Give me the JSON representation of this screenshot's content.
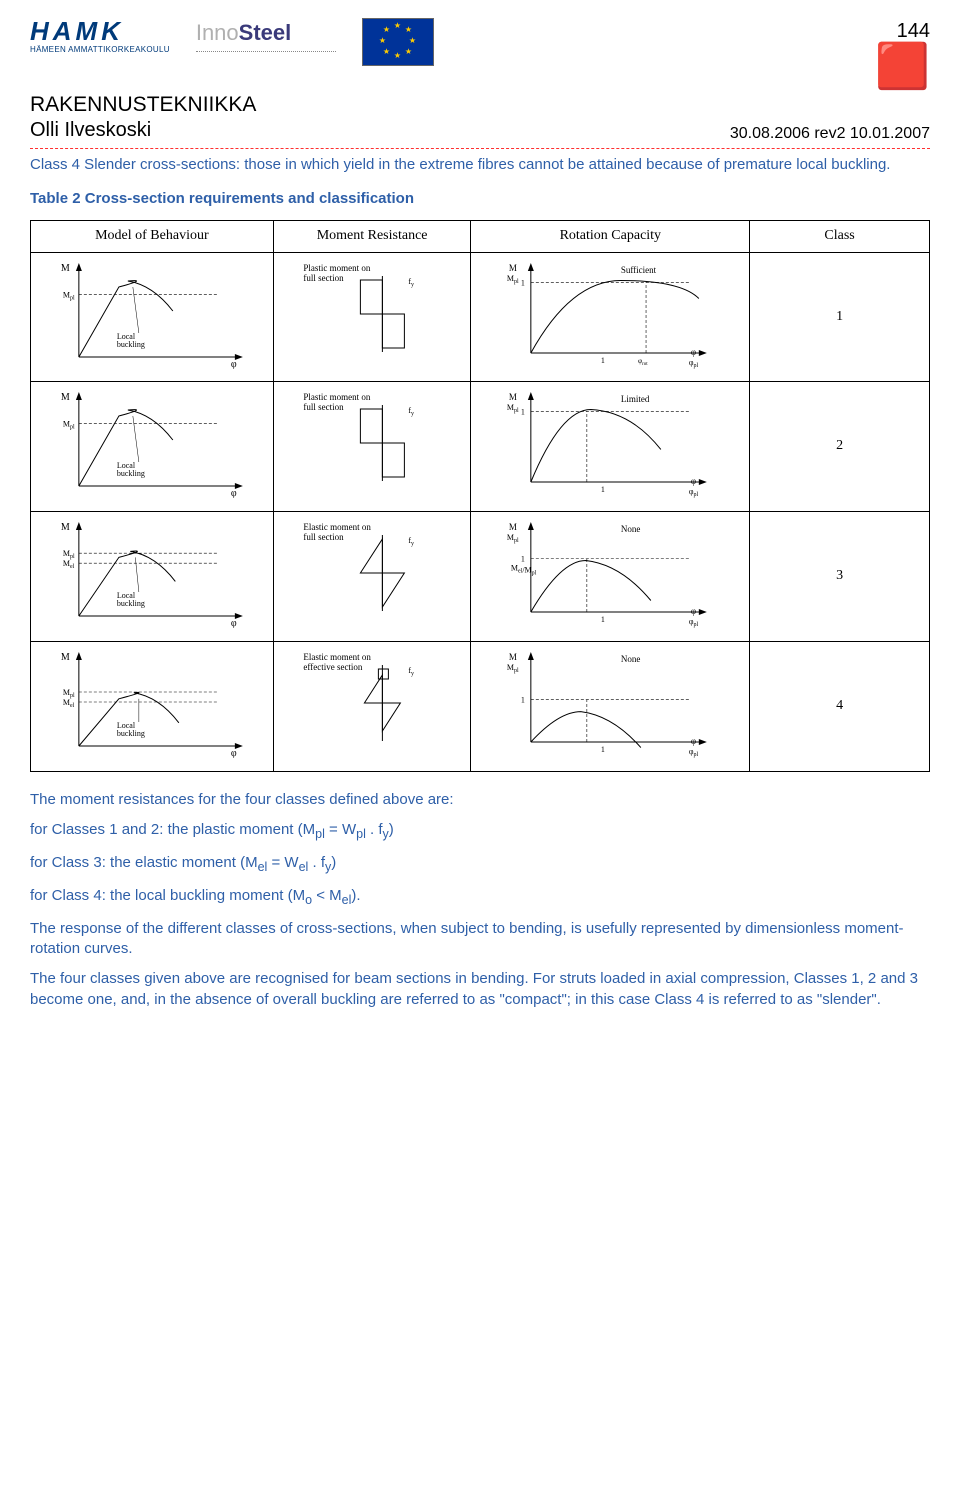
{
  "page_number": "144",
  "logos": {
    "hamk_word": "HAMK",
    "hamk_sub": "HÄMEEN AMMATTIKORKEAKOULU",
    "innosteel_a": "Inno",
    "innosteel_b": "Steel"
  },
  "doc": {
    "section_title": "RAKENNUSTEKNIIKKA",
    "author": "Olli Ilveskoski",
    "date": "30.08.2006  rev2 10.01.2007"
  },
  "intro": "Class 4 Slender cross-sections: those in which yield in the extreme fibres cannot be attained because of premature local buckling.",
  "table_title": "Table 2 Cross-section requirements and classification",
  "headers": {
    "h1": "Model of Behaviour",
    "h2": "Moment Resistance",
    "h3": "Rotation Capacity",
    "h4": "Class"
  },
  "rows": [
    {
      "behaviour": {
        "ylabel": "M",
        "yref": "M_pl",
        "note": "Local buckling",
        "cap_ratio": 1.0,
        "dash_y": 0.78
      },
      "resistance": {
        "label": "Plastic moment on full section",
        "type": "plastic"
      },
      "rotation": {
        "label": "Sufficient",
        "type": "sufficient",
        "peak": 0.98,
        "dash_x": 0.72
      },
      "class": "1"
    },
    {
      "behaviour": {
        "ylabel": "M",
        "yref": "M_pl",
        "note": "Local buckling",
        "cap_ratio": 1.0,
        "dash_y": 0.78
      },
      "resistance": {
        "label": "Plastic moment on full section",
        "type": "plastic"
      },
      "rotation": {
        "label": "Limited",
        "type": "limited",
        "peak": 0.98,
        "dash_x": 0.35
      },
      "class": "2"
    },
    {
      "behaviour": {
        "ylabel": "M",
        "yref": "M_pl",
        "yref2": "M_el",
        "note": "Local buckling",
        "cap_ratio": 0.85,
        "dash_y": 0.66
      },
      "resistance": {
        "label": "Elastic moment on full section",
        "type": "elastic"
      },
      "rotation": {
        "label": "None",
        "type": "none",
        "peak": 0.75,
        "dash_x": 0.35
      },
      "class": "3"
    },
    {
      "behaviour": {
        "ylabel": "M",
        "yref": "M_pl",
        "yref2": "M_el",
        "note": "Local buckling",
        "cap_ratio": 0.7,
        "dash_y": 0.55
      },
      "resistance": {
        "label": "Elastic moment on effective section",
        "type": "effective"
      },
      "rotation": {
        "label": "None",
        "type": "none4",
        "peak": 0.6,
        "dash_x": 0.35
      },
      "class": "4"
    }
  ],
  "style": {
    "text_color": "#2e5fa8",
    "stroke": "#000000",
    "dash": "3,2",
    "font_serif": "Times New Roman"
  },
  "after": {
    "p1": "The moment resistances for the four classes defined above are:",
    "p2": "for Classes 1 and 2: the plastic moment (M_pl = W_pl . f_y)",
    "p3": "for Class 3: the elastic moment (M_el = W_el . f_y)",
    "p4": "for Class 4: the local buckling moment (M_o < M_el).",
    "p5": "The response of the different classes of cross-sections, when subject to bending, is usefully represented by dimensionless moment-rotation curves.",
    "p6": "The four classes given above are recognised for beam sections in bending. For struts loaded in axial compression, Classes 1, 2 and 3 become one, and, in the absence of overall buckling are referred to as \"compact\"; in this case Class 4 is referred to as \"slender\"."
  }
}
